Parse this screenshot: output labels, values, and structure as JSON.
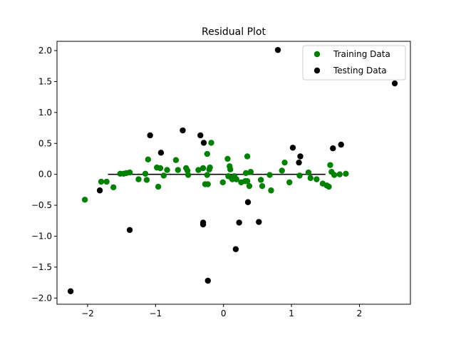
{
  "chart_data": {
    "type": "scatter",
    "title": "Residual Plot",
    "xlabel": "",
    "ylabel": "",
    "xlim": [
      -2.45,
      2.75
    ],
    "ylim": [
      -2.1,
      2.15
    ],
    "xticks": [
      -2,
      -1,
      0,
      1,
      2
    ],
    "yticks": [
      -2.0,
      -1.5,
      -1.0,
      -0.5,
      0.0,
      0.5,
      1.0,
      1.5,
      2.0
    ],
    "xtick_labels": [
      "−2",
      "−1",
      "0",
      "1",
      "2"
    ],
    "ytick_labels": [
      "−2.0",
      "−1.5",
      "−1.0",
      "−0.5",
      "0.0",
      "0.5",
      "1.0",
      "1.5",
      "2.0"
    ],
    "grid": false,
    "legend_position": "top-right",
    "hline": {
      "y": 0,
      "xmin": -1.7,
      "xmax": 1.5,
      "color": "#000000"
    },
    "series": [
      {
        "name": "Training Data",
        "color": "#008000",
        "points": [
          [
            -2.04,
            -0.41
          ],
          [
            -1.8,
            -0.12
          ],
          [
            -1.72,
            -0.12
          ],
          [
            -1.62,
            -0.21
          ],
          [
            -1.52,
            0.01
          ],
          [
            -1.47,
            0.01
          ],
          [
            -1.43,
            0.02
          ],
          [
            -1.38,
            0.03
          ],
          [
            -1.25,
            -0.08
          ],
          [
            -1.15,
            0.01
          ],
          [
            -1.13,
            -0.09
          ],
          [
            -1.11,
            0.24
          ],
          [
            -0.98,
            0.11
          ],
          [
            -0.96,
            -0.2
          ],
          [
            -0.93,
            0.1
          ],
          [
            -0.88,
            -0.02
          ],
          [
            -0.83,
            0.07
          ],
          [
            -0.7,
            0.23
          ],
          [
            -0.67,
            0.07
          ],
          [
            -0.55,
            0.1
          ],
          [
            -0.53,
            0.06
          ],
          [
            -0.52,
            -0.01
          ],
          [
            -0.37,
            0.07
          ],
          [
            -0.3,
            0.1
          ],
          [
            -0.27,
            -0.16
          ],
          [
            -0.24,
            0.33
          ],
          [
            -0.24,
            -0.01
          ],
          [
            -0.23,
            -0.16
          ],
          [
            -0.21,
            0.08
          ],
          [
            -0.2,
            0.11
          ],
          [
            -0.18,
            0.51
          ],
          [
            -0.01,
            -0.13
          ],
          [
            0.06,
            0.25
          ],
          [
            0.07,
            -0.03
          ],
          [
            0.09,
            0.13
          ],
          [
            0.1,
            0.08
          ],
          [
            0.12,
            -0.06
          ],
          [
            0.13,
            -0.08
          ],
          [
            0.16,
            -0.03
          ],
          [
            0.19,
            -0.08
          ],
          [
            0.26,
            -0.13
          ],
          [
            0.32,
            -0.11
          ],
          [
            0.33,
            0.02
          ],
          [
            0.35,
            0.29
          ],
          [
            0.35,
            -0.11
          ],
          [
            0.38,
            -0.19
          ],
          [
            0.4,
            0.04
          ],
          [
            0.55,
            -0.09
          ],
          [
            0.57,
            -0.19
          ],
          [
            0.68,
            -0.01
          ],
          [
            0.7,
            -0.26
          ],
          [
            0.86,
            0.06
          ],
          [
            0.9,
            0.19
          ],
          [
            0.97,
            -0.13
          ],
          [
            1.12,
            -0.02
          ],
          [
            1.25,
            0.03
          ],
          [
            1.28,
            -0.06
          ],
          [
            1.37,
            -0.08
          ],
          [
            1.46,
            -0.15
          ],
          [
            1.52,
            -0.18
          ],
          [
            1.55,
            -0.2
          ],
          [
            1.57,
            0.15
          ],
          [
            1.59,
            0.04
          ],
          [
            1.63,
            -0.01
          ],
          [
            1.71,
            0.0
          ],
          [
            1.8,
            0.01
          ]
        ]
      },
      {
        "name": "Testing Data",
        "color": "#000000",
        "points": [
          [
            -2.25,
            -1.89
          ],
          [
            -1.82,
            -0.26
          ],
          [
            -1.38,
            -0.9
          ],
          [
            -1.08,
            0.63
          ],
          [
            -0.92,
            0.35
          ],
          [
            -0.6,
            0.71
          ],
          [
            -0.34,
            0.63
          ],
          [
            -0.3,
            -0.78
          ],
          [
            -0.3,
            -0.81
          ],
          [
            -0.29,
            0.51
          ],
          [
            -0.23,
            -1.72
          ],
          [
            0.18,
            -1.21
          ],
          [
            0.23,
            -0.78
          ],
          [
            0.36,
            -0.45
          ],
          [
            0.52,
            -0.77
          ],
          [
            0.8,
            2.01
          ],
          [
            1.02,
            0.43
          ],
          [
            1.11,
            0.19
          ],
          [
            1.13,
            0.29
          ],
          [
            1.61,
            0.42
          ],
          [
            1.73,
            0.48
          ],
          [
            2.52,
            1.47
          ]
        ]
      }
    ]
  }
}
